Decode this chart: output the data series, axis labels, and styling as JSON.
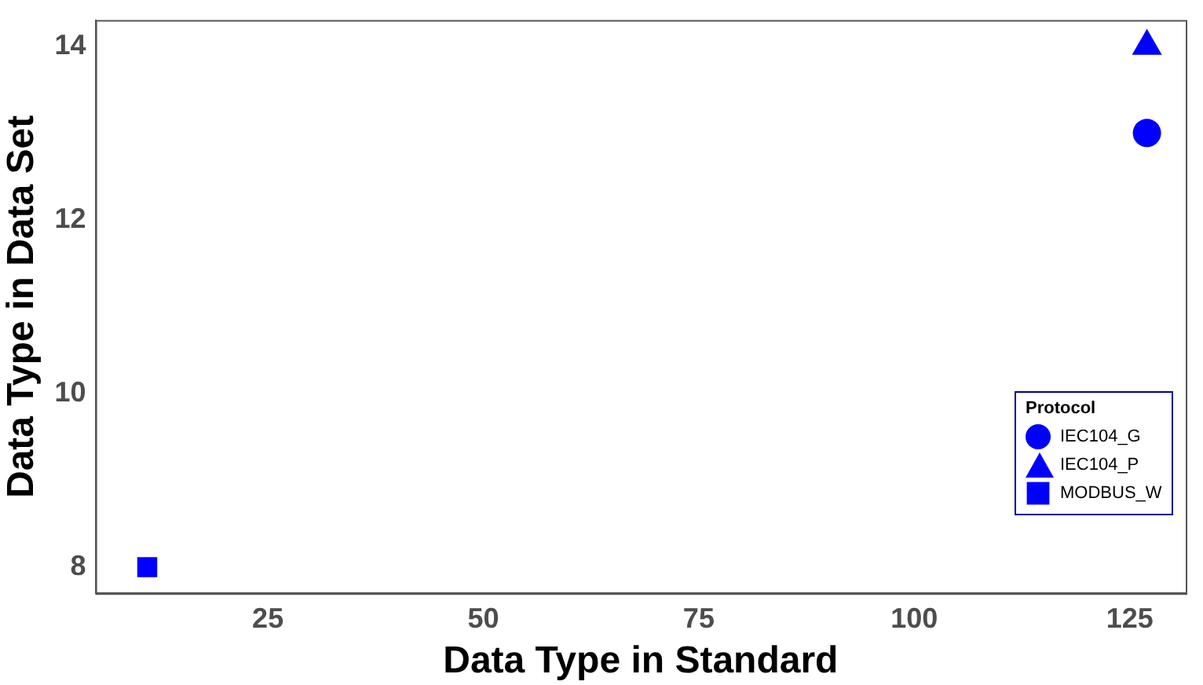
{
  "chart_data": {
    "type": "scatter",
    "xlabel": "Data Type in Standard",
    "ylabel": "Data Type in Data Set",
    "legend_title": "Protocol",
    "legend": "bottom right",
    "grid": false,
    "xlim": [
      5,
      131.5
    ],
    "xticks": [
      25,
      50,
      75,
      100,
      125
    ],
    "ylim": [
      7.7,
      14.3
    ],
    "yticks": [
      8,
      10,
      12,
      14
    ],
    "x": [
      11,
      127
    ],
    "series": [
      {
        "name": "IEC104_G",
        "color": "#0000ff",
        "marker": "circle",
        "values": [
          null,
          13
        ]
      },
      {
        "name": "IEC104_P",
        "color": "#0000ff",
        "marker": "triangle",
        "values": [
          null,
          14
        ]
      },
      {
        "name": "MODBUS_W",
        "color": "#0000ff",
        "marker": "square",
        "values": [
          8,
          null
        ]
      }
    ]
  }
}
